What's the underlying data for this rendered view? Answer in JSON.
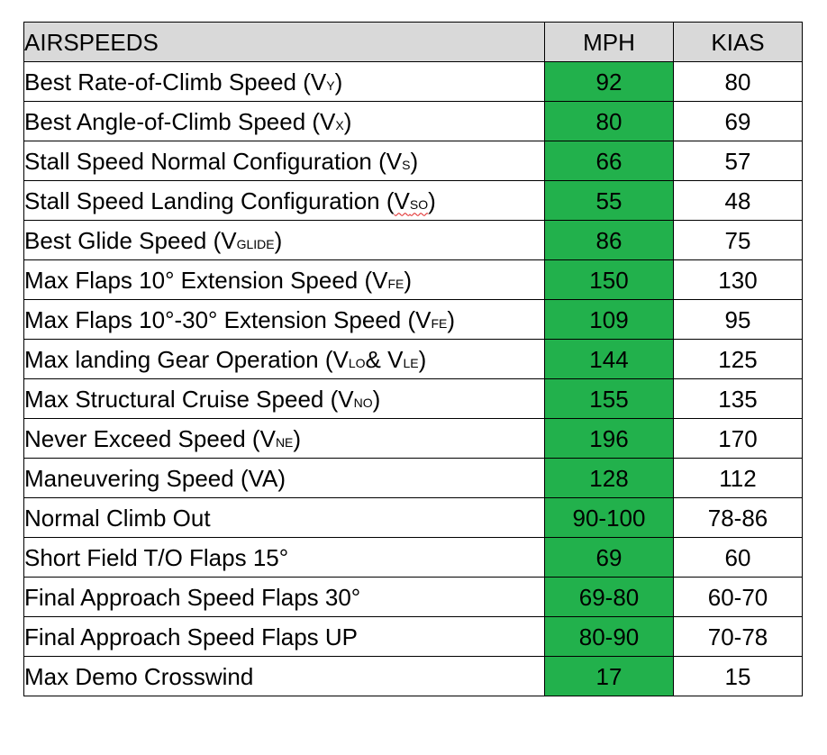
{
  "header": {
    "name": "AIRSPEEDS",
    "mph": "MPH",
    "kias": "KIAS"
  },
  "rows": [
    {
      "label": "Best Rate-of-Climb Speed (V",
      "sub": "Y",
      "suffix": ")",
      "mph": "92",
      "kias": "80"
    },
    {
      "label": "Best Angle-of-Climb Speed (V",
      "sub": "X",
      "suffix": ")",
      "mph": "80",
      "kias": "69"
    },
    {
      "label": "Stall Speed Normal Configuration (V",
      "sub": "S",
      "suffix": ")",
      "mph": "66",
      "kias": "57"
    },
    {
      "label": "Stall Speed Landing Configuration (",
      "pre_sub": "V",
      "sub": "SO",
      "suffix": ")",
      "mph": "55",
      "kias": "48"
    },
    {
      "label": "Best Glide Speed (V",
      "sub": "GLIDE",
      "suffix": ")",
      "mph": "86",
      "kias": "75"
    },
    {
      "label": "Max Flaps 10° Extension Speed (V",
      "sub": "FE",
      "suffix": ")",
      "mph": "150",
      "kias": "130"
    },
    {
      "label": "Max Flaps 10°-30° Extension Speed (V",
      "sub": "FE",
      "suffix": ")",
      "mph": "109",
      "kias": "95"
    },
    {
      "label": "Max landing Gear Operation (V",
      "sub": "LO",
      "mid": "& V",
      "sub2": "LE",
      "suffix": ")",
      "mph": "144",
      "kias": "125"
    },
    {
      "label": "Max Structural Cruise Speed (V",
      "sub": "NO",
      "suffix": ")",
      "mph": "155",
      "kias": "135"
    },
    {
      "label": "Never Exceed Speed (V",
      "sub": "NE",
      "suffix": ")",
      "mph": "196",
      "kias": "170"
    },
    {
      "label": "Maneuvering Speed (VA)",
      "mph": "128",
      "kias": "112"
    },
    {
      "label": "Normal Climb Out",
      "mph": "90-100",
      "kias": "78-86"
    },
    {
      "label": "Short Field T/O Flaps 15°",
      "mph": "69",
      "kias": "60"
    },
    {
      "label": "Final Approach Speed Flaps 30°",
      "mph": "69-80",
      "kias": "60-70"
    },
    {
      "label": "Final Approach Speed Flaps UP",
      "mph": "80-90",
      "kias": "70-78"
    },
    {
      "label": "Max Demo Crosswind",
      "mph": "17",
      "kias": "15"
    }
  ],
  "colors": {
    "mph_fill": "#22b14c",
    "header_fill": "#d9d9d9"
  }
}
